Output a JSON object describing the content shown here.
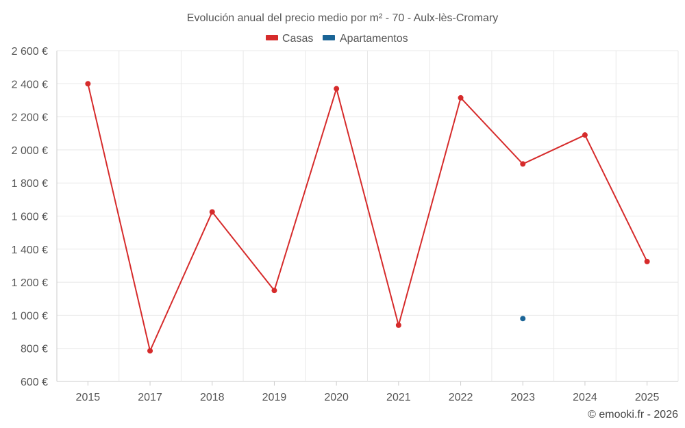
{
  "chart_data": {
    "type": "line",
    "title": "Evolución anual del precio medio por m² - 70 - Aulx-lès-Cromary",
    "xlabel": "",
    "ylabel": "",
    "categories": [
      "2015",
      "2017",
      "2018",
      "2019",
      "2020",
      "2021",
      "2022",
      "2023",
      "2024",
      "2025"
    ],
    "ylim": [
      600,
      2600
    ],
    "yticks": [
      600,
      800,
      1000,
      1200,
      1400,
      1600,
      1800,
      2000,
      2200,
      2400,
      2600
    ],
    "ytick_labels": [
      "600 €",
      "800 €",
      "1 000 €",
      "1 200 €",
      "1 400 €",
      "1 600 €",
      "1 800 €",
      "2 000 €",
      "2 200 €",
      "2 400 €",
      "2 600 €"
    ],
    "grid": true,
    "legend_position": "top-center",
    "series": [
      {
        "name": "Casas",
        "color": "#d62b2b",
        "values": [
          2400,
          785,
          1625,
          1150,
          2370,
          940,
          2315,
          1915,
          2090,
          1325
        ]
      },
      {
        "name": "Apartamentos",
        "color": "#1a6496",
        "values": [
          null,
          null,
          null,
          null,
          null,
          null,
          null,
          980,
          null,
          null
        ]
      }
    ]
  },
  "credit": "© emooki.fr - 2026"
}
